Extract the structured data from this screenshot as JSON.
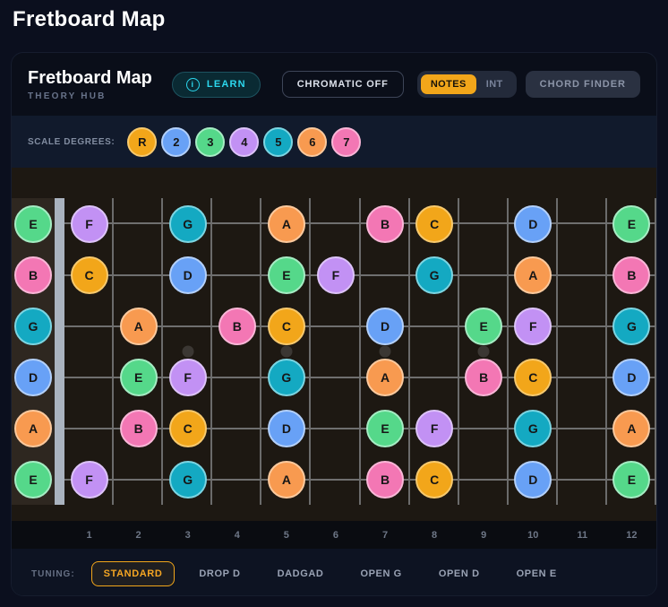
{
  "page_title": "Fretboard Map",
  "header": {
    "title": "Fretboard Map",
    "subtitle": "THEORY HUB",
    "learn": {
      "icon": "i",
      "label": "LEARN"
    },
    "chromatic_button": "CHROMATIC OFF",
    "view_toggle": {
      "options": [
        "NOTES",
        "INT"
      ],
      "active": "NOTES"
    },
    "chord_finder_button": "CHORD FINDER"
  },
  "legend": {
    "label": "SCALE DEGREES:",
    "degrees": [
      "R",
      "2",
      "3",
      "4",
      "5",
      "6",
      "7"
    ]
  },
  "degree_colors": {
    "R": {
      "bg": "#f2a61a",
      "border": "#f7c96d"
    },
    "2": {
      "bg": "#68a1f6",
      "border": "#b3d0fa"
    },
    "3": {
      "bg": "#55d88a",
      "border": "#a5ecc3"
    },
    "4": {
      "bg": "#c291f4",
      "border": "#ddc3f9"
    },
    "5": {
      "bg": "#14a9c2",
      "border": "#7cd5e2"
    },
    "6": {
      "bg": "#f89a50",
      "border": "#fbc99d"
    },
    "7": {
      "bg": "#f377b4",
      "border": "#f9b6d7"
    }
  },
  "fretboard": {
    "fret_count": 12,
    "fret_numbers": [
      "1",
      "2",
      "3",
      "4",
      "5",
      "6",
      "7",
      "8",
      "9",
      "10",
      "11",
      "12"
    ],
    "inlay_frets": [
      3,
      5,
      7,
      9
    ],
    "double_inlay_fret": 12,
    "strings": [
      {
        "open_note": "E",
        "open_degree": "3",
        "notes": [
          {
            "fret": 1,
            "note": "F",
            "degree": "4"
          },
          {
            "fret": 3,
            "note": "G",
            "degree": "5"
          },
          {
            "fret": 5,
            "note": "A",
            "degree": "6"
          },
          {
            "fret": 7,
            "note": "B",
            "degree": "7"
          },
          {
            "fret": 8,
            "note": "C",
            "degree": "R"
          },
          {
            "fret": 10,
            "note": "D",
            "degree": "2"
          },
          {
            "fret": 12,
            "note": "E",
            "degree": "3"
          }
        ]
      },
      {
        "open_note": "B",
        "open_degree": "7",
        "notes": [
          {
            "fret": 1,
            "note": "C",
            "degree": "R"
          },
          {
            "fret": 3,
            "note": "D",
            "degree": "2"
          },
          {
            "fret": 5,
            "note": "E",
            "degree": "3"
          },
          {
            "fret": 6,
            "note": "F",
            "degree": "4"
          },
          {
            "fret": 8,
            "note": "G",
            "degree": "5"
          },
          {
            "fret": 10,
            "note": "A",
            "degree": "6"
          },
          {
            "fret": 12,
            "note": "B",
            "degree": "7"
          }
        ]
      },
      {
        "open_note": "G",
        "open_degree": "5",
        "notes": [
          {
            "fret": 2,
            "note": "A",
            "degree": "6"
          },
          {
            "fret": 4,
            "note": "B",
            "degree": "7"
          },
          {
            "fret": 5,
            "note": "C",
            "degree": "R"
          },
          {
            "fret": 7,
            "note": "D",
            "degree": "2"
          },
          {
            "fret": 9,
            "note": "E",
            "degree": "3"
          },
          {
            "fret": 10,
            "note": "F",
            "degree": "4"
          },
          {
            "fret": 12,
            "note": "G",
            "degree": "5"
          }
        ]
      },
      {
        "open_note": "D",
        "open_degree": "2",
        "notes": [
          {
            "fret": 2,
            "note": "E",
            "degree": "3"
          },
          {
            "fret": 3,
            "note": "F",
            "degree": "4"
          },
          {
            "fret": 5,
            "note": "G",
            "degree": "5"
          },
          {
            "fret": 7,
            "note": "A",
            "degree": "6"
          },
          {
            "fret": 9,
            "note": "B",
            "degree": "7"
          },
          {
            "fret": 10,
            "note": "C",
            "degree": "R"
          },
          {
            "fret": 12,
            "note": "D",
            "degree": "2"
          }
        ]
      },
      {
        "open_note": "A",
        "open_degree": "6",
        "notes": [
          {
            "fret": 2,
            "note": "B",
            "degree": "7"
          },
          {
            "fret": 3,
            "note": "C",
            "degree": "R"
          },
          {
            "fret": 5,
            "note": "D",
            "degree": "2"
          },
          {
            "fret": 7,
            "note": "E",
            "degree": "3"
          },
          {
            "fret": 8,
            "note": "F",
            "degree": "4"
          },
          {
            "fret": 10,
            "note": "G",
            "degree": "5"
          },
          {
            "fret": 12,
            "note": "A",
            "degree": "6"
          }
        ]
      },
      {
        "open_note": "E",
        "open_degree": "3",
        "notes": [
          {
            "fret": 1,
            "note": "F",
            "degree": "4"
          },
          {
            "fret": 3,
            "note": "G",
            "degree": "5"
          },
          {
            "fret": 5,
            "note": "A",
            "degree": "6"
          },
          {
            "fret": 7,
            "note": "B",
            "degree": "7"
          },
          {
            "fret": 8,
            "note": "C",
            "degree": "R"
          },
          {
            "fret": 10,
            "note": "D",
            "degree": "2"
          },
          {
            "fret": 12,
            "note": "E",
            "degree": "3"
          }
        ]
      }
    ]
  },
  "tuning": {
    "label": "TUNING:",
    "options": [
      {
        "label": "STANDARD",
        "active": true
      },
      {
        "label": "DROP D",
        "active": false
      },
      {
        "label": "DADGAD",
        "active": false
      },
      {
        "label": "OPEN G",
        "active": false
      },
      {
        "label": "OPEN D",
        "active": false
      },
      {
        "label": "OPEN E",
        "active": false
      }
    ]
  }
}
